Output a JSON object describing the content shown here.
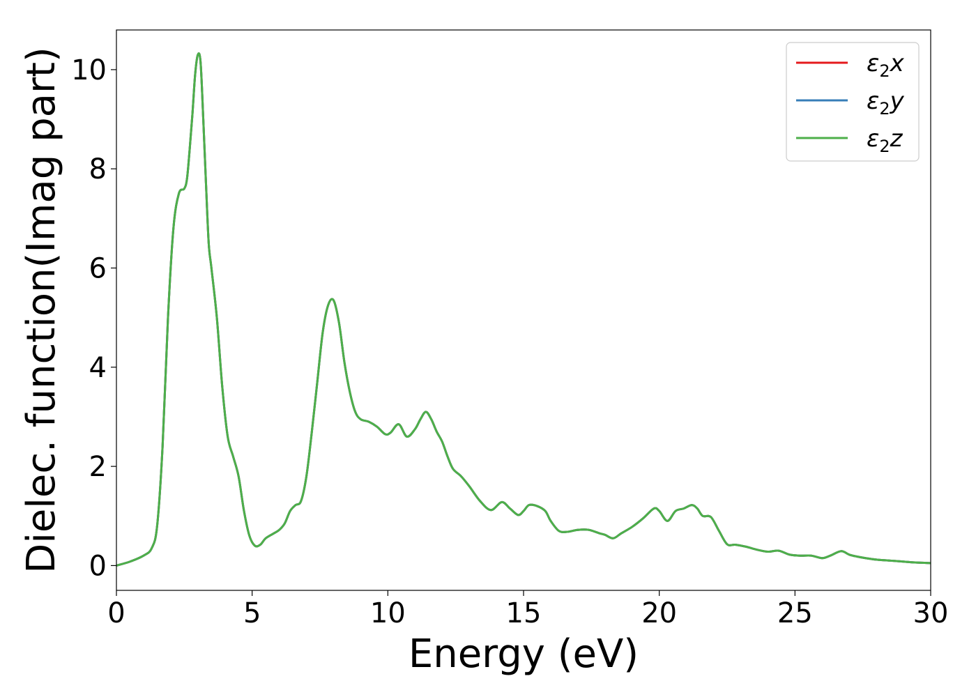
{
  "chart_data": {
    "type": "line",
    "title": "",
    "xlabel": "Energy (eV)",
    "ylabel": "Dielec. function(Imag part)",
    "xlim": [
      0,
      30
    ],
    "ylim": [
      -0.5,
      10.8
    ],
    "xticks": [
      0,
      5,
      10,
      15,
      20,
      25,
      30
    ],
    "yticks": [
      0,
      2,
      4,
      6,
      8,
      10
    ],
    "grid": false,
    "legend_position": "top-right",
    "series": [
      {
        "name": "ε2x",
        "legend_base": "ε",
        "legend_sub": "2",
        "legend_var": "x",
        "color": "#e41a1c",
        "x": [
          0,
          0.5,
          1.0,
          1.3,
          1.5,
          1.7,
          1.9,
          2.1,
          2.3,
          2.5,
          2.6,
          2.7,
          2.8,
          2.9,
          3.0,
          3.1,
          3.2,
          3.3,
          3.4,
          3.5,
          3.7,
          3.9,
          4.1,
          4.3,
          4.5,
          4.7,
          4.9,
          5.1,
          5.3,
          5.5,
          5.8,
          6.0,
          6.2,
          6.4,
          6.6,
          6.8,
          7.0,
          7.2,
          7.4,
          7.6,
          7.8,
          8.0,
          8.2,
          8.4,
          8.6,
          8.8,
          9.0,
          9.3,
          9.6,
          9.9,
          10.1,
          10.4,
          10.7,
          11.0,
          11.2,
          11.4,
          11.6,
          11.8,
          12.0,
          12.2,
          12.4,
          12.7,
          13.0,
          13.4,
          13.8,
          14.2,
          14.5,
          14.8,
          15.0,
          15.2,
          15.5,
          15.8,
          16.0,
          16.3,
          16.6,
          17.0,
          17.4,
          17.8,
          18.0,
          18.3,
          18.6,
          19.0,
          19.4,
          19.8,
          20.0,
          20.3,
          20.6,
          20.9,
          21.2,
          21.4,
          21.6,
          21.9,
          22.2,
          22.5,
          22.8,
          23.2,
          23.6,
          24.0,
          24.4,
          24.8,
          25.2,
          25.6,
          26.0,
          26.3,
          26.7,
          27.0,
          27.3,
          27.6,
          28.0,
          28.5,
          29.0,
          29.5,
          30.0
        ],
        "y": [
          0.0,
          0.08,
          0.2,
          0.35,
          0.8,
          2.4,
          5.0,
          6.8,
          7.5,
          7.6,
          7.8,
          8.4,
          9.1,
          9.9,
          10.3,
          10.15,
          9.0,
          7.7,
          6.5,
          6.0,
          5.0,
          3.6,
          2.6,
          2.2,
          1.8,
          1.1,
          0.6,
          0.4,
          0.42,
          0.55,
          0.65,
          0.72,
          0.85,
          1.1,
          1.22,
          1.3,
          1.8,
          2.7,
          3.7,
          4.7,
          5.25,
          5.35,
          4.9,
          4.1,
          3.5,
          3.1,
          2.95,
          2.9,
          2.8,
          2.65,
          2.68,
          2.85,
          2.6,
          2.75,
          2.95,
          3.1,
          2.95,
          2.7,
          2.5,
          2.2,
          1.95,
          1.8,
          1.6,
          1.3,
          1.12,
          1.28,
          1.15,
          1.02,
          1.1,
          1.22,
          1.2,
          1.1,
          0.9,
          0.7,
          0.68,
          0.72,
          0.72,
          0.65,
          0.62,
          0.55,
          0.65,
          0.78,
          0.95,
          1.15,
          1.1,
          0.9,
          1.1,
          1.15,
          1.22,
          1.15,
          1.0,
          0.98,
          0.7,
          0.43,
          0.42,
          0.38,
          0.32,
          0.28,
          0.3,
          0.22,
          0.2,
          0.2,
          0.15,
          0.2,
          0.29,
          0.22,
          0.18,
          0.15,
          0.12,
          0.1,
          0.08,
          0.06,
          0.05
        ]
      },
      {
        "name": "ε2y",
        "legend_base": "ε",
        "legend_sub": "2",
        "legend_var": "y",
        "color": "#377eb8",
        "same_as": "ε2x"
      },
      {
        "name": "ε2z",
        "legend_base": "ε",
        "legend_sub": "2",
        "legend_var": "z",
        "color": "#4daf4a",
        "same_as": "ε2x"
      }
    ]
  }
}
